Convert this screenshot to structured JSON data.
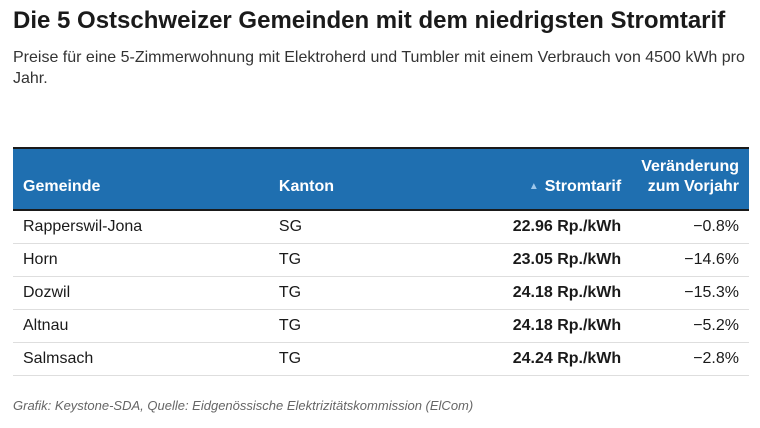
{
  "header": {
    "title": "Die 5 Ostschweizer Gemeinden mit dem niedrigsten Stromtarif",
    "subtitle": "Preise für eine 5-Zimmerwohnung mit Elektroherd und Tumbler mit einem Verbrauch von 4500 kWh pro Jahr."
  },
  "chart_data": {
    "type": "table",
    "title": "Die 5 Ostschweizer Gemeinden mit dem niedrigsten Stromtarif",
    "subtitle": "Preise für eine 5-Zimmerwohnung mit Elektroherd und Tumbler mit einem Verbrauch von 4500 kWh pro Jahr.",
    "columns": [
      "Gemeinde",
      "Kanton",
      "Stromtarif",
      "Veränderung zum Vorjahr"
    ],
    "sorted_column": "Stromtarif",
    "sort_order": "ascending",
    "rows": [
      {
        "gemeinde": "Rapperswil-Jona",
        "kanton": "SG",
        "stromtarif": "22.96 Rp./kWh",
        "veraenderung": "−0.8%"
      },
      {
        "gemeinde": "Horn",
        "kanton": "TG",
        "stromtarif": "23.05 Rp./kWh",
        "veraenderung": "−14.6%"
      },
      {
        "gemeinde": "Dozwil",
        "kanton": "TG",
        "stromtarif": "24.18 Rp./kWh",
        "veraenderung": "−15.3%"
      },
      {
        "gemeinde": "Altnau",
        "kanton": "TG",
        "stromtarif": "24.18 Rp./kWh",
        "veraenderung": "−5.2%"
      },
      {
        "gemeinde": "Salmsach",
        "kanton": "TG",
        "stromtarif": "24.24 Rp./kWh",
        "veraenderung": "−2.8%"
      }
    ]
  },
  "table": {
    "headers": {
      "gemeinde": "Gemeinde",
      "kanton": "Kanton",
      "stromtarif": "Stromtarif",
      "veraenderung_line1": "Veränderung",
      "veraenderung_line2": "zum Vorjahr",
      "sort_icon": "sort-ascending-icon"
    }
  },
  "footer": {
    "source": "Grafik: Keystone-SDA, Quelle: Eidgenössische Elektrizitätskommission (ElCom)"
  },
  "colors": {
    "header_background": "#1f6fb0",
    "header_text": "#ffffff",
    "row_divider": "#dedede"
  }
}
